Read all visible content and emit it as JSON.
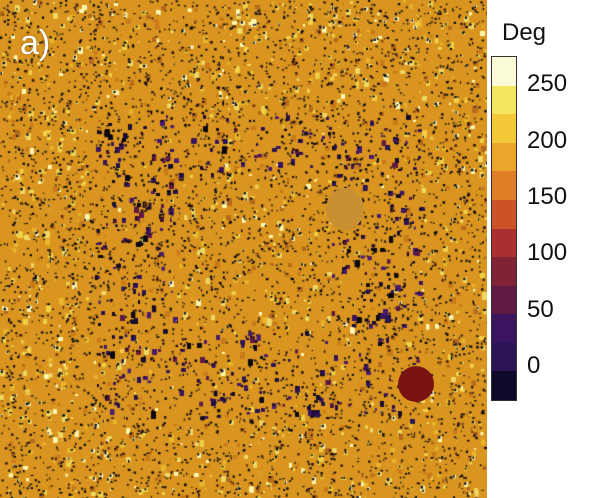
{
  "figure": {
    "panel_label": "a)",
    "colorbar": {
      "title": "Deg",
      "ticks": [
        "250",
        "200",
        "150",
        "100",
        "50",
        "0"
      ],
      "band_colors": [
        "#fbfad6",
        "#f4e65e",
        "#f3c93a",
        "#eba42c",
        "#e07d27",
        "#cc5327",
        "#a9302f",
        "#822236",
        "#5f1a44",
        "#3b1460",
        "#2a1456",
        "#0f0a2a"
      ]
    },
    "map_colors": {
      "background": [
        "#d9951f",
        "#c97a1a",
        "#e8b62e",
        "#f1d14a",
        "#b56a1c",
        "#efd865",
        "#fff7b0"
      ],
      "dark_region": [
        "#2a1456",
        "#3b1460",
        "#4a1b6e",
        "#1a0e32",
        "#0b0812",
        "#5f1a44",
        "#c97a1a"
      ],
      "speckle": "#0b0812"
    },
    "markers": [
      {
        "color": "#c99032"
      },
      {
        "color": "#7a1412"
      }
    ]
  }
}
